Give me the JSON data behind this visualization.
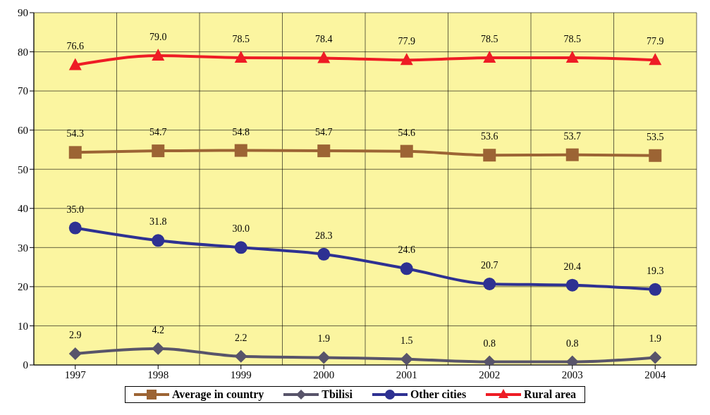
{
  "chart_data": {
    "type": "line",
    "categories": [
      "1997",
      "1998",
      "1999",
      "2000",
      "2001",
      "2002",
      "2003",
      "2004"
    ],
    "series": [
      {
        "name": "Average in country",
        "color": "#9c6434",
        "marker": "square",
        "values": [
          54.3,
          54.7,
          54.8,
          54.7,
          54.6,
          53.6,
          53.7,
          53.5
        ],
        "value_labels": [
          "54.3",
          "54.7",
          "54.8",
          "54.7",
          "54.6",
          "53.6",
          "53.7",
          "53.5"
        ]
      },
      {
        "name": "Tbilisi",
        "color": "#58546a",
        "marker": "diamond",
        "values": [
          2.9,
          4.2,
          2.2,
          1.9,
          1.5,
          0.8,
          0.8,
          1.9
        ],
        "value_labels": [
          "2.9",
          "4.2",
          "2.2",
          "1.9",
          "1.5",
          "0.8",
          "0.8",
          "1.9"
        ]
      },
      {
        "name": "Other cities",
        "color": "#2e3192",
        "marker": "circle",
        "values": [
          35.0,
          31.8,
          30.0,
          28.3,
          24.6,
          20.7,
          20.4,
          19.3
        ],
        "value_labels": [
          "35.0",
          "31.8",
          "30.0",
          "28.3",
          "24.6",
          "20.7",
          "20.4",
          "19.3"
        ]
      },
      {
        "name": "Rural area",
        "color": "#ee1c25",
        "marker": "triangle",
        "values": [
          76.6,
          79.0,
          78.5,
          78.4,
          77.9,
          78.5,
          78.5,
          77.9
        ],
        "value_labels": [
          "76.6",
          "79.0",
          "78.5",
          "78.4",
          "77.9",
          "78.5",
          "78.5",
          "77.9"
        ]
      }
    ],
    "ylim": [
      0,
      90
    ],
    "yticks": [
      0,
      10,
      20,
      30,
      40,
      50,
      60,
      70,
      80,
      90
    ],
    "grid": true,
    "legend": "bottom",
    "line_style": "solid"
  }
}
